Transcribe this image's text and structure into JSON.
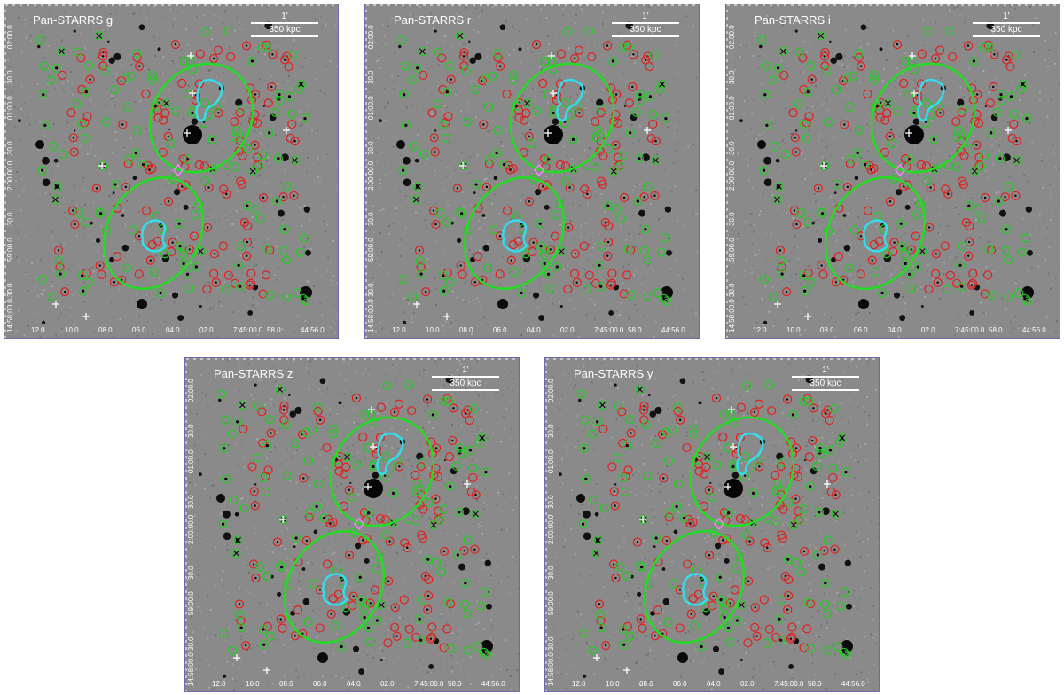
{
  "panels": [
    {
      "id": "g",
      "title": "Pan-STARRS g"
    },
    {
      "id": "r",
      "title": "Pan-STARRS r"
    },
    {
      "id": "i",
      "title": "Pan-STARRS i"
    },
    {
      "id": "z",
      "title": "Pan-STARRS z"
    },
    {
      "id": "y",
      "title": "Pan-STARRS y"
    }
  ],
  "scalebar": {
    "arcmin": "1'",
    "kpc": "350 kpc"
  },
  "x_ticks": [
    "12.0",
    "10.0",
    "08.0",
    "06.0",
    "04.0",
    "02.0",
    "7:45:00.0",
    "58.0",
    "44:56.0"
  ],
  "y_ticks": [
    "14:58:00.0",
    "30.0",
    "59:00.0",
    "30.0",
    "2:00:00.0",
    "30.0",
    "01:00.0",
    "30.0",
    "02:00.0"
  ],
  "colors": {
    "red_markers": "#e02020",
    "green_markers": "#22cc22",
    "contour_ellipse": "#22dd22",
    "cyan_contour": "#33ddee",
    "diamond": "#ee88ee",
    "background": "#8a8a8a",
    "frame": "#6b6bb0"
  }
}
